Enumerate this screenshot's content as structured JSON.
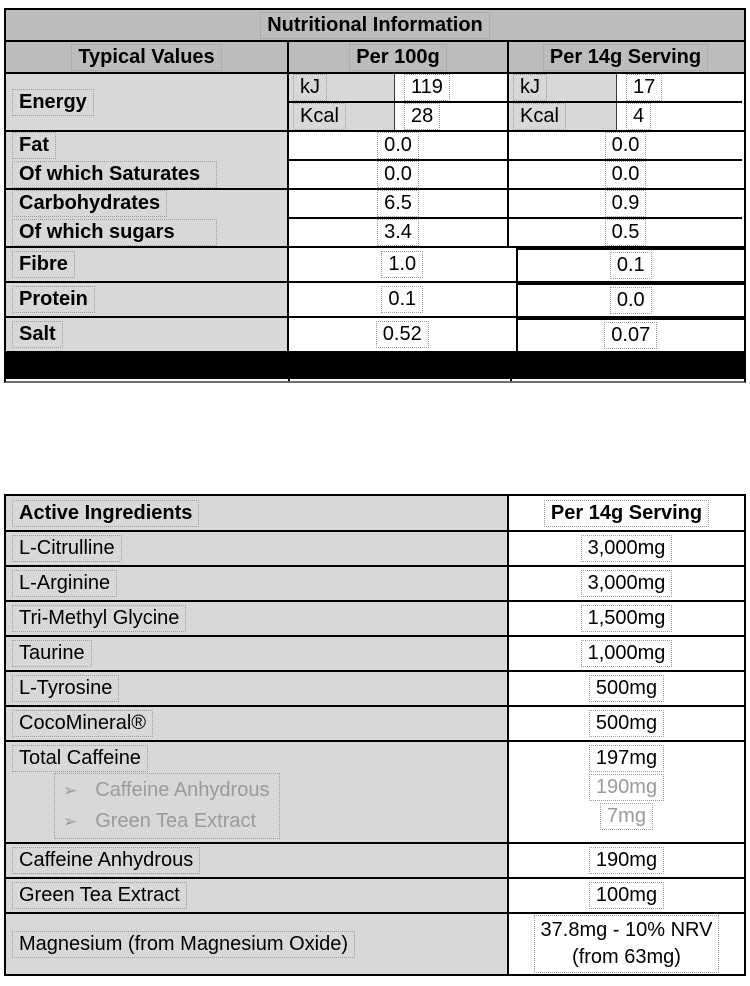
{
  "colors": {
    "header_bg": "#bcbcbc",
    "label_bg": "#d8d8d8",
    "subitem_text": "#9a9a9a",
    "border": "#000000"
  },
  "nutrition_table": {
    "title": "Nutritional Information",
    "col_headers": [
      "Typical Values",
      "Per 100g",
      "Per 14g Serving"
    ],
    "energy": {
      "label": "Energy",
      "rows": [
        {
          "unit": "kJ",
          "per_100g": "119",
          "per_serving": "17"
        },
        {
          "unit": "Kcal",
          "per_100g": "28",
          "per_serving": "4"
        }
      ]
    },
    "groups": [
      {
        "labels": [
          "Fat",
          "Of which Saturates"
        ],
        "per_100g": [
          "0.0",
          "0.0"
        ],
        "per_serving": [
          "0.0",
          "0.0"
        ]
      },
      {
        "labels": [
          "Carbohydrates",
          "Of which sugars"
        ],
        "per_100g": [
          "6.5",
          "3.4"
        ],
        "per_serving": [
          "0.9",
          "0.5"
        ]
      }
    ],
    "simple_rows": [
      {
        "label": "Fibre",
        "per_100g": "1.0",
        "per_serving": "0.1"
      },
      {
        "label": "Protein",
        "per_100g": "0.1",
        "per_serving": "0.0"
      },
      {
        "label": "Salt",
        "per_100g": "0.52",
        "per_serving": "0.07"
      }
    ]
  },
  "ingredients_table": {
    "header": {
      "label": "Active Ingredients",
      "value": "Per 14g Serving"
    },
    "rows": [
      {
        "label": "L-Citrulline",
        "value": "3,000mg"
      },
      {
        "label": "L-Arginine",
        "value": "3,000mg"
      },
      {
        "label": "Tri-Methyl Glycine",
        "value": "1,500mg"
      },
      {
        "label": "Taurine",
        "value": "1,000mg"
      },
      {
        "label": "L-Tyrosine",
        "value": "500mg"
      },
      {
        "label": "CocoMineral®",
        "value": "500mg"
      },
      {
        "label": "Caffeine Anhydrous",
        "value": "190mg"
      },
      {
        "label": "Green Tea Extract",
        "value": "100mg"
      }
    ],
    "caffeine_group": {
      "label": "Total Caffeine",
      "value": "197mg",
      "bullet": "➢",
      "subitems": [
        {
          "label": "Caffeine Anhydrous",
          "value": "190mg"
        },
        {
          "label": "Green Tea Extract",
          "value": "7mg"
        }
      ]
    },
    "magnesium": {
      "label": "Magnesium (from Magnesium Oxide)",
      "value_lines": [
        "37.8mg - 10% NRV",
        "(from 63mg)"
      ]
    }
  }
}
